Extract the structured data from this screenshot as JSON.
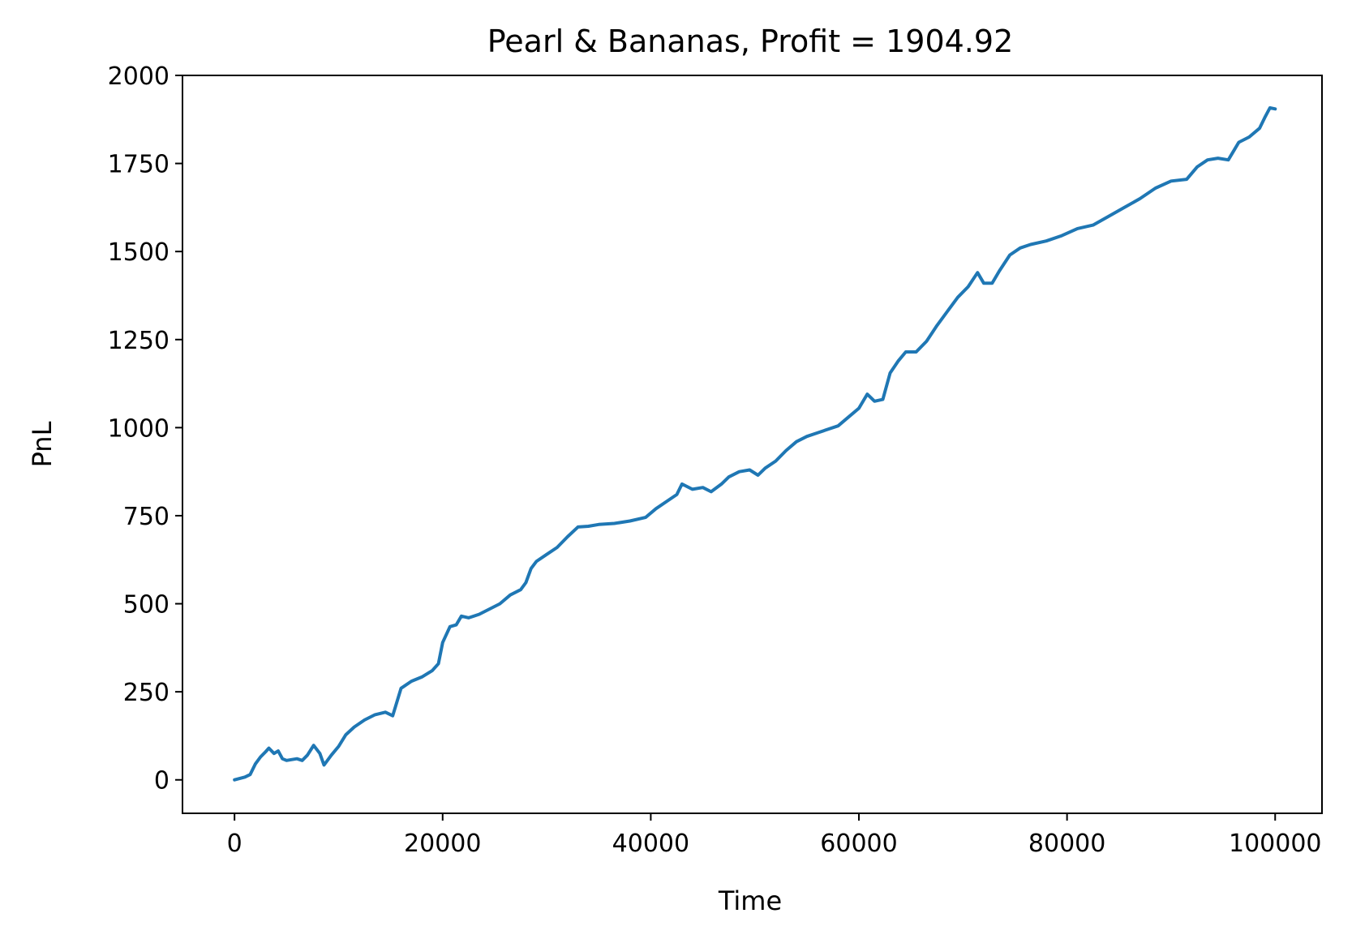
{
  "chart_data": {
    "type": "line",
    "title": "Pearl & Bananas, Profit = 1904.92",
    "xlabel": "Time",
    "ylabel": "PnL",
    "xlim": [
      -5000,
      104500
    ],
    "ylim": [
      -95,
      2000
    ],
    "xticks": [
      0,
      20000,
      40000,
      60000,
      80000,
      100000
    ],
    "yticks": [
      0,
      250,
      500,
      750,
      1000,
      1250,
      1500,
      1750,
      2000
    ],
    "grid": false,
    "line_color": "#1f77b4",
    "series": [
      {
        "points": [
          [
            0,
            0
          ],
          [
            1000,
            8
          ],
          [
            1500,
            15
          ],
          [
            2000,
            45
          ],
          [
            2500,
            65
          ],
          [
            3000,
            80
          ],
          [
            3300,
            90
          ],
          [
            3800,
            75
          ],
          [
            4200,
            82
          ],
          [
            4600,
            60
          ],
          [
            5000,
            55
          ],
          [
            6000,
            60
          ],
          [
            6500,
            55
          ],
          [
            7000,
            70
          ],
          [
            7600,
            98
          ],
          [
            8200,
            75
          ],
          [
            8600,
            42
          ],
          [
            9300,
            70
          ],
          [
            10000,
            95
          ],
          [
            10700,
            128
          ],
          [
            11500,
            150
          ],
          [
            12500,
            170
          ],
          [
            13500,
            185
          ],
          [
            14500,
            192
          ],
          [
            15200,
            182
          ],
          [
            16000,
            260
          ],
          [
            17000,
            280
          ],
          [
            18000,
            292
          ],
          [
            19000,
            310
          ],
          [
            19600,
            330
          ],
          [
            20000,
            390
          ],
          [
            20700,
            435
          ],
          [
            21300,
            440
          ],
          [
            21800,
            465
          ],
          [
            22500,
            460
          ],
          [
            23500,
            470
          ],
          [
            24500,
            485
          ],
          [
            25500,
            500
          ],
          [
            26500,
            525
          ],
          [
            27500,
            540
          ],
          [
            28000,
            560
          ],
          [
            28500,
            600
          ],
          [
            29000,
            620
          ],
          [
            30000,
            640
          ],
          [
            31000,
            660
          ],
          [
            32000,
            690
          ],
          [
            33000,
            718
          ],
          [
            34000,
            720
          ],
          [
            35000,
            725
          ],
          [
            36500,
            728
          ],
          [
            38000,
            735
          ],
          [
            39500,
            745
          ],
          [
            40500,
            770
          ],
          [
            41500,
            790
          ],
          [
            42500,
            810
          ],
          [
            43000,
            840
          ],
          [
            44000,
            825
          ],
          [
            45000,
            830
          ],
          [
            45800,
            818
          ],
          [
            46800,
            840
          ],
          [
            47500,
            860
          ],
          [
            48500,
            875
          ],
          [
            49500,
            880
          ],
          [
            50300,
            865
          ],
          [
            51000,
            885
          ],
          [
            52000,
            905
          ],
          [
            53000,
            935
          ],
          [
            54000,
            960
          ],
          [
            55000,
            975
          ],
          [
            56000,
            985
          ],
          [
            57000,
            995
          ],
          [
            58000,
            1005
          ],
          [
            59000,
            1030
          ],
          [
            60000,
            1055
          ],
          [
            60800,
            1095
          ],
          [
            61500,
            1075
          ],
          [
            62300,
            1080
          ],
          [
            63000,
            1155
          ],
          [
            63800,
            1190
          ],
          [
            64500,
            1215
          ],
          [
            65500,
            1215
          ],
          [
            66500,
            1245
          ],
          [
            67500,
            1290
          ],
          [
            68500,
            1330
          ],
          [
            69500,
            1370
          ],
          [
            70500,
            1400
          ],
          [
            71400,
            1440
          ],
          [
            72000,
            1410
          ],
          [
            72800,
            1410
          ],
          [
            73500,
            1445
          ],
          [
            74500,
            1490
          ],
          [
            75500,
            1510
          ],
          [
            76500,
            1520
          ],
          [
            78000,
            1530
          ],
          [
            79500,
            1545
          ],
          [
            81000,
            1565
          ],
          [
            82500,
            1575
          ],
          [
            84000,
            1600
          ],
          [
            85500,
            1625
          ],
          [
            87000,
            1650
          ],
          [
            88500,
            1680
          ],
          [
            90000,
            1700
          ],
          [
            91500,
            1705
          ],
          [
            92500,
            1740
          ],
          [
            93500,
            1760
          ],
          [
            94500,
            1765
          ],
          [
            95500,
            1760
          ],
          [
            96500,
            1810
          ],
          [
            97500,
            1825
          ],
          [
            98500,
            1850
          ],
          [
            99000,
            1880
          ],
          [
            99500,
            1908
          ],
          [
            100000,
            1905
          ]
        ]
      }
    ]
  }
}
